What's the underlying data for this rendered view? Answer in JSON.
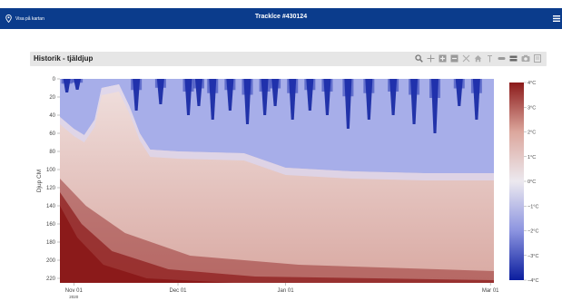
{
  "header": {
    "map_link_label": "Visa på kartan",
    "title": "Tracklce #430124"
  },
  "panel": {
    "title": "Historik - tjäldjup",
    "toolbar_icons": [
      "zoom-icon",
      "pan-icon",
      "zoom-in-icon",
      "zoom-out-icon",
      "autoscale-icon",
      "home-icon",
      "spike-lines-icon",
      "compare-hover-icon",
      "closest-hover-icon",
      "camera-icon",
      "reset-icon"
    ]
  },
  "chart_data": {
    "type": "heatmap",
    "xlabel": "",
    "ylabel": "Djup CM",
    "x_ticks": [
      {
        "label": "Nov 01",
        "sublabel": "2020",
        "date": "2020-11-01"
      },
      {
        "label": "Dec 01",
        "date": "2020-12-01"
      },
      {
        "label": "Jan 01",
        "date": "2021-01-01"
      },
      {
        "label": "Mar 01",
        "date": "2021-03-01"
      }
    ],
    "x_range": [
      "2020-10-28",
      "2021-03-02"
    ],
    "y_ticks": [
      0,
      20,
      40,
      60,
      80,
      100,
      120,
      140,
      160,
      180,
      200,
      220
    ],
    "y_range": [
      0,
      225
    ],
    "y_reversed": true,
    "colorbar": {
      "ticks": [
        "4°C",
        "3°C",
        "2°C",
        "1°C",
        "0°C",
        "−1°C",
        "−2°C",
        "−3°C",
        "−4°C"
      ],
      "values": [
        4,
        3,
        2,
        1,
        0,
        -1,
        -2,
        -3,
        -4
      ],
      "min": -4,
      "max": 4,
      "colorscale": [
        "#0a1d9e",
        "#8c94e0",
        "#ece9ef",
        "#dca79d",
        "#8b1a1a"
      ]
    },
    "frost_depth_profile": [
      {
        "date": "2020-10-28",
        "depth": 42
      },
      {
        "date": "2020-11-01",
        "depth": 55
      },
      {
        "date": "2020-11-04",
        "depth": 62
      },
      {
        "date": "2020-11-07",
        "depth": 45
      },
      {
        "date": "2020-11-09",
        "depth": 10
      },
      {
        "date": "2020-11-14",
        "depth": 6
      },
      {
        "date": "2020-11-17",
        "depth": 30
      },
      {
        "date": "2020-11-20",
        "depth": 60
      },
      {
        "date": "2020-11-23",
        "depth": 78
      },
      {
        "date": "2020-12-01",
        "depth": 80
      },
      {
        "date": "2020-12-20",
        "depth": 82
      },
      {
        "date": "2021-01-01",
        "depth": 98
      },
      {
        "date": "2021-01-20",
        "depth": 102
      },
      {
        "date": "2021-02-10",
        "depth": 104
      },
      {
        "date": "2021-03-02",
        "depth": 104
      }
    ],
    "cold_bands": [
      {
        "date": "2020-10-30",
        "depth": 15
      },
      {
        "date": "2020-11-02",
        "depth": 12
      },
      {
        "date": "2020-11-19",
        "depth": 35
      },
      {
        "date": "2020-11-26",
        "depth": 28
      },
      {
        "date": "2020-12-04",
        "depth": 40
      },
      {
        "date": "2020-12-07",
        "depth": 30
      },
      {
        "date": "2020-12-11",
        "depth": 45
      },
      {
        "date": "2020-12-16",
        "depth": 35
      },
      {
        "date": "2020-12-21",
        "depth": 50
      },
      {
        "date": "2020-12-26",
        "depth": 40
      },
      {
        "date": "2020-12-29",
        "depth": 30
      },
      {
        "date": "2021-01-03",
        "depth": 45
      },
      {
        "date": "2021-01-08",
        "depth": 35
      },
      {
        "date": "2021-01-13",
        "depth": 40
      },
      {
        "date": "2021-01-19",
        "depth": 55
      },
      {
        "date": "2021-01-25",
        "depth": 45
      },
      {
        "date": "2021-02-01",
        "depth": 40
      },
      {
        "date": "2021-02-07",
        "depth": 50
      },
      {
        "date": "2021-02-13",
        "depth": 60
      },
      {
        "date": "2021-02-20",
        "depth": 30
      },
      {
        "date": "2021-02-25",
        "depth": 45
      }
    ]
  },
  "colors": {
    "header_bg": "#0b3c8c",
    "panel_bg": "#e6e6e6"
  }
}
